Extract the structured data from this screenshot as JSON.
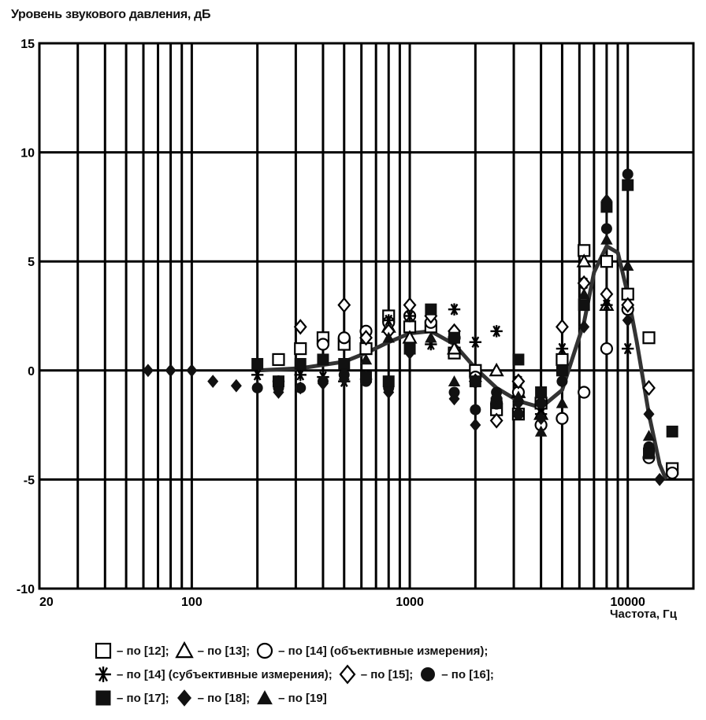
{
  "chart_data": {
    "type": "scatter",
    "title": "",
    "ylabel": "Уровень звукового давления, дБ",
    "xlabel": "Частота, Гц",
    "x_scale": "log",
    "xlim": [
      20,
      20000
    ],
    "ylim": [
      -10,
      15
    ],
    "grid": true,
    "x_ticks": [
      {
        "value": 20,
        "label": "20"
      },
      {
        "value": 100,
        "label": "100"
      },
      {
        "value": 1000,
        "label": "1000"
      },
      {
        "value": 10000,
        "label": "10000"
      }
    ],
    "y_ticks": [
      {
        "value": 15,
        "label": "15"
      },
      {
        "value": 10,
        "label": "10"
      },
      {
        "value": 5,
        "label": "5"
      },
      {
        "value": 0,
        "label": "0"
      },
      {
        "value": -5,
        "label": "-5"
      },
      {
        "value": -10,
        "label": "-10"
      }
    ],
    "legend_placement": "bottom",
    "series": [
      {
        "name": "– по [12];",
        "marker": "square-open",
        "points": [
          [
            250,
            0.5
          ],
          [
            315,
            1.0
          ],
          [
            400,
            1.5
          ],
          [
            500,
            1.2
          ],
          [
            630,
            1.0
          ],
          [
            800,
            2.5
          ],
          [
            1000,
            2.0
          ],
          [
            1250,
            2.0
          ],
          [
            1600,
            0.8
          ],
          [
            2000,
            0.0
          ],
          [
            2500,
            -1.8
          ],
          [
            3150,
            -2.0
          ],
          [
            4000,
            -1.5
          ],
          [
            5000,
            0.5
          ],
          [
            6300,
            5.5
          ],
          [
            8000,
            5.0
          ],
          [
            10000,
            3.5
          ],
          [
            12500,
            1.5
          ],
          [
            16000,
            -4.5
          ]
        ]
      },
      {
        "name": "– по [13];",
        "marker": "triangle-open",
        "points": [
          [
            800,
            2.0
          ],
          [
            1000,
            1.5
          ],
          [
            1600,
            1.0
          ],
          [
            2500,
            0.0
          ],
          [
            3150,
            -1.0
          ],
          [
            4000,
            -2.0
          ],
          [
            6300,
            5.0
          ],
          [
            8000,
            3.0
          ]
        ]
      },
      {
        "name": "– по [14] (объективные измерения);",
        "marker": "circle-open",
        "points": [
          [
            400,
            1.2
          ],
          [
            500,
            1.5
          ],
          [
            630,
            1.8
          ],
          [
            800,
            2.2
          ],
          [
            1000,
            2.5
          ],
          [
            1250,
            2.2
          ],
          [
            1600,
            1.5
          ],
          [
            2000,
            -0.3
          ],
          [
            2500,
            -1.5
          ],
          [
            3150,
            -1.0
          ],
          [
            4000,
            -2.5
          ],
          [
            5000,
            -2.2
          ],
          [
            6300,
            -1.0
          ],
          [
            8000,
            1.0
          ],
          [
            10000,
            2.8
          ],
          [
            12500,
            -4.0
          ],
          [
            16000,
            -4.7
          ]
        ]
      },
      {
        "name": "– по [14] (субъективные измерения);",
        "marker": "asterisk",
        "points": [
          [
            200,
            -0.2
          ],
          [
            250,
            -0.5
          ],
          [
            315,
            -0.2
          ],
          [
            400,
            -0.3
          ],
          [
            500,
            -0.5
          ],
          [
            630,
            -0.4
          ],
          [
            800,
            2.3
          ],
          [
            1000,
            2.5
          ],
          [
            1250,
            1.2
          ],
          [
            1600,
            2.8
          ],
          [
            2000,
            1.3
          ],
          [
            2500,
            1.8
          ],
          [
            3150,
            -0.5
          ],
          [
            4000,
            -2.0
          ],
          [
            5000,
            1.0
          ],
          [
            6300,
            4.0
          ],
          [
            8000,
            3.0
          ],
          [
            10000,
            1.0
          ]
        ]
      },
      {
        "name": "– по [15];",
        "marker": "diamond-open",
        "points": [
          [
            315,
            2.0
          ],
          [
            500,
            3.0
          ],
          [
            630,
            1.5
          ],
          [
            800,
            1.8
          ],
          [
            1000,
            3.0
          ],
          [
            1250,
            2.5
          ],
          [
            1600,
            1.8
          ],
          [
            2000,
            -0.5
          ],
          [
            2500,
            -2.3
          ],
          [
            3150,
            -0.5
          ],
          [
            4000,
            -1.5
          ],
          [
            5000,
            2.0
          ],
          [
            6300,
            4.0
          ],
          [
            8000,
            3.5
          ],
          [
            10000,
            3.0
          ],
          [
            12500,
            -0.8
          ]
        ]
      },
      {
        "name": "– по [16];",
        "marker": "circle-filled",
        "points": [
          [
            200,
            -0.8
          ],
          [
            250,
            -0.8
          ],
          [
            315,
            -0.8
          ],
          [
            400,
            -0.5
          ],
          [
            500,
            -0.2
          ],
          [
            630,
            -0.5
          ],
          [
            800,
            -0.8
          ],
          [
            1000,
            1.0
          ],
          [
            1600,
            -1.0
          ],
          [
            2000,
            -1.8
          ],
          [
            2500,
            -1.0
          ],
          [
            3150,
            -2.0
          ],
          [
            4000,
            -1.5
          ],
          [
            5000,
            -0.5
          ],
          [
            6300,
            3.0
          ],
          [
            8000,
            6.5
          ],
          [
            10000,
            9.0
          ],
          [
            12500,
            -3.5
          ]
        ]
      },
      {
        "name": "– по [17];",
        "marker": "square-filled",
        "points": [
          [
            200,
            0.3
          ],
          [
            250,
            -0.5
          ],
          [
            315,
            0.3
          ],
          [
            400,
            0.5
          ],
          [
            500,
            0.3
          ],
          [
            630,
            -0.3
          ],
          [
            800,
            -0.5
          ],
          [
            1000,
            1.0
          ],
          [
            1250,
            2.8
          ],
          [
            1600,
            1.5
          ],
          [
            2000,
            -0.5
          ],
          [
            2500,
            -1.5
          ],
          [
            3150,
            0.5
          ],
          [
            4000,
            -1.0
          ],
          [
            5000,
            0.0
          ],
          [
            6300,
            3.0
          ],
          [
            8000,
            7.5
          ],
          [
            10000,
            8.5
          ],
          [
            12500,
            -3.8
          ],
          [
            16000,
            -2.8
          ]
        ]
      },
      {
        "name": "– по [18];",
        "marker": "diamond-filled",
        "points": [
          [
            63,
            0.0
          ],
          [
            80,
            0.0
          ],
          [
            100,
            0.0
          ],
          [
            125,
            -0.5
          ],
          [
            160,
            -0.7
          ],
          [
            200,
            -0.8
          ],
          [
            250,
            -1.0
          ],
          [
            315,
            -0.8
          ],
          [
            400,
            -0.6
          ],
          [
            500,
            -0.4
          ],
          [
            630,
            -0.3
          ],
          [
            800,
            -1.0
          ],
          [
            1000,
            0.8
          ],
          [
            1600,
            -1.3
          ],
          [
            2000,
            -2.5
          ],
          [
            2500,
            -1.2
          ],
          [
            3150,
            -1.5
          ],
          [
            4000,
            -2.2
          ],
          [
            5000,
            -0.5
          ],
          [
            6300,
            2.0
          ],
          [
            8000,
            7.8
          ],
          [
            10000,
            2.3
          ],
          [
            12500,
            -2.0
          ],
          [
            14000,
            -5.0
          ]
        ]
      },
      {
        "name": "– по [19]",
        "marker": "triangle-filled",
        "points": [
          [
            630,
            0.5
          ],
          [
            800,
            1.5
          ],
          [
            1250,
            1.5
          ],
          [
            1600,
            -0.5
          ],
          [
            3150,
            -1.2
          ],
          [
            4000,
            -2.8
          ],
          [
            5000,
            -1.5
          ],
          [
            6300,
            3.5
          ],
          [
            8000,
            6.0
          ],
          [
            10000,
            4.8
          ],
          [
            12500,
            -3.0
          ]
        ]
      }
    ],
    "trend_curve": [
      [
        200,
        0.0
      ],
      [
        315,
        0.1
      ],
      [
        500,
        0.4
      ],
      [
        630,
        0.8
      ],
      [
        800,
        1.3
      ],
      [
        1000,
        1.7
      ],
      [
        1250,
        1.8
      ],
      [
        1600,
        1.2
      ],
      [
        2000,
        0.1
      ],
      [
        2500,
        -0.8
      ],
      [
        3150,
        -1.4
      ],
      [
        4000,
        -1.7
      ],
      [
        5000,
        -0.9
      ],
      [
        6300,
        2.2
      ],
      [
        7000,
        4.5
      ],
      [
        8000,
        5.7
      ],
      [
        9000,
        5.4
      ],
      [
        10000,
        3.5
      ],
      [
        11000,
        1.3
      ],
      [
        12500,
        -2.0
      ],
      [
        14000,
        -4.3
      ],
      [
        15000,
        -5.0
      ]
    ]
  }
}
